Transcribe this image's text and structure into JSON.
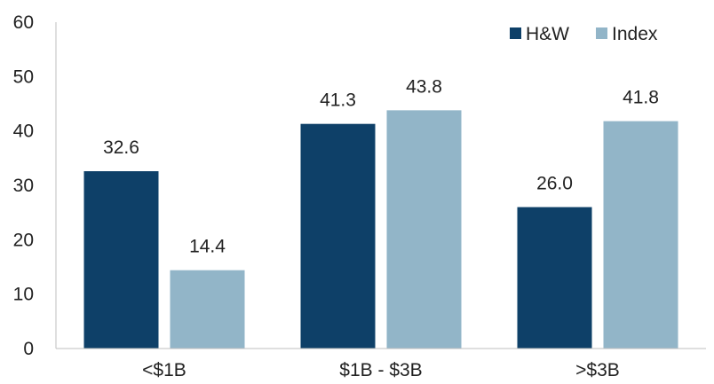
{
  "chart_data": {
    "type": "bar",
    "categories": [
      "<$1B",
      "$1B - $3B",
      ">$3B"
    ],
    "series": [
      {
        "name": "H&W",
        "values": [
          32.6,
          41.3,
          26.0
        ],
        "labels": [
          "32.6",
          "41.3",
          "26.0"
        ],
        "color": "#0e4068"
      },
      {
        "name": "Index",
        "values": [
          14.4,
          43.8,
          41.8
        ],
        "labels": [
          "14.4",
          "43.8",
          "41.8"
        ],
        "color": "#92b5c8"
      }
    ],
    "yticks": [
      "0",
      "10",
      "20",
      "30",
      "40",
      "50",
      "60"
    ],
    "ylim": [
      0,
      60
    ],
    "grid": false,
    "legend_position": "top-right",
    "title": "",
    "xlabel": "",
    "ylabel": ""
  }
}
